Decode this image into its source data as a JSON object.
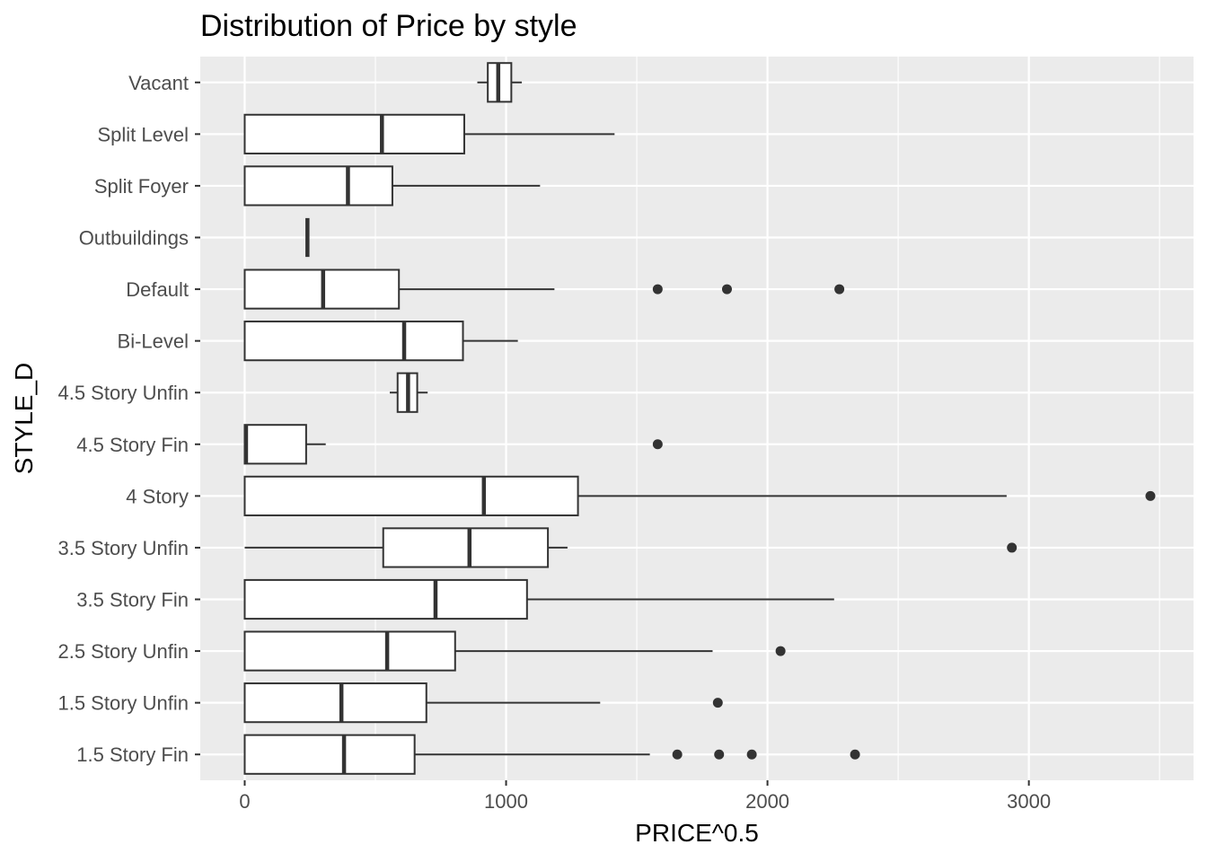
{
  "chart_data": {
    "type": "boxplot",
    "orientation": "horizontal",
    "title": "Distribution of Price by style",
    "xlabel": "PRICE^0.5",
    "ylabel": "STYLE_D",
    "xlim": [
      -170,
      3630
    ],
    "xticks": [
      0,
      1000,
      2000,
      3000
    ],
    "xtick_labels": [
      "0",
      "1000",
      "2000",
      "3000"
    ],
    "grid": true,
    "colors": {
      "panel_background": "#ebebeb",
      "grid": "#ffffff",
      "box_fill": "#ffffff",
      "box_stroke": "#333333",
      "outlier": "#333333",
      "tick_text": "#4d4d4d"
    },
    "categories": [
      "Vacant",
      "Split Level",
      "Split Foyer",
      "Outbuildings",
      "Default",
      "Bi-Level",
      "4.5 Story Unfin",
      "4.5 Story Fin",
      "4 Story",
      "3.5 Story Unfin",
      "3.5 Story Fin",
      "2.5 Story Unfin",
      "1.5 Story Unfin",
      "1.5 Story Fin"
    ],
    "boxes": [
      {
        "category": "Vacant",
        "min": 890,
        "q1": 930,
        "median": 970,
        "q3": 1020,
        "max": 1060,
        "outliers": []
      },
      {
        "category": "Split Level",
        "min": 0,
        "q1": 0,
        "median": 525,
        "q3": 840,
        "max": 1415,
        "outliers": []
      },
      {
        "category": "Split Foyer",
        "min": 0,
        "q1": 0,
        "median": 395,
        "q3": 565,
        "max": 1130,
        "outliers": []
      },
      {
        "category": "Outbuildings",
        "min": 240,
        "q1": 240,
        "median": 240,
        "q3": 240,
        "max": 240,
        "outliers": []
      },
      {
        "category": "Default",
        "min": 0,
        "q1": 0,
        "median": 300,
        "q3": 590,
        "max": 1185,
        "outliers": [
          1580,
          1845,
          2275
        ]
      },
      {
        "category": "Bi-Level",
        "min": 0,
        "q1": 0,
        "median": 610,
        "q3": 835,
        "max": 1045,
        "outliers": []
      },
      {
        "category": "4.5 Story Unfin",
        "min": 555,
        "q1": 585,
        "median": 625,
        "q3": 660,
        "max": 700,
        "outliers": []
      },
      {
        "category": "4.5 Story Fin",
        "min": 0,
        "q1": 0,
        "median": 5,
        "q3": 235,
        "max": 310,
        "outliers": [
          1580
        ]
      },
      {
        "category": "4 Story",
        "min": 0,
        "q1": 0,
        "median": 915,
        "q3": 1275,
        "max": 2915,
        "outliers": [
          3465
        ]
      },
      {
        "category": "3.5 Story Unfin",
        "min": 0,
        "q1": 530,
        "median": 860,
        "q3": 1160,
        "max": 1235,
        "outliers": [
          2935
        ]
      },
      {
        "category": "3.5 Story Fin",
        "min": 0,
        "q1": 0,
        "median": 730,
        "q3": 1080,
        "max": 2255,
        "outliers": []
      },
      {
        "category": "2.5 Story Unfin",
        "min": 0,
        "q1": 0,
        "median": 545,
        "q3": 805,
        "max": 1790,
        "outliers": [
          2050
        ]
      },
      {
        "category": "1.5 Story Unfin",
        "min": 0,
        "q1": 0,
        "median": 370,
        "q3": 695,
        "max": 1360,
        "outliers": [
          1810
        ]
      },
      {
        "category": "1.5 Story Fin",
        "min": 0,
        "q1": 0,
        "median": 380,
        "q3": 650,
        "max": 1550,
        "outliers": [
          1655,
          1815,
          1940,
          2335
        ]
      }
    ]
  }
}
